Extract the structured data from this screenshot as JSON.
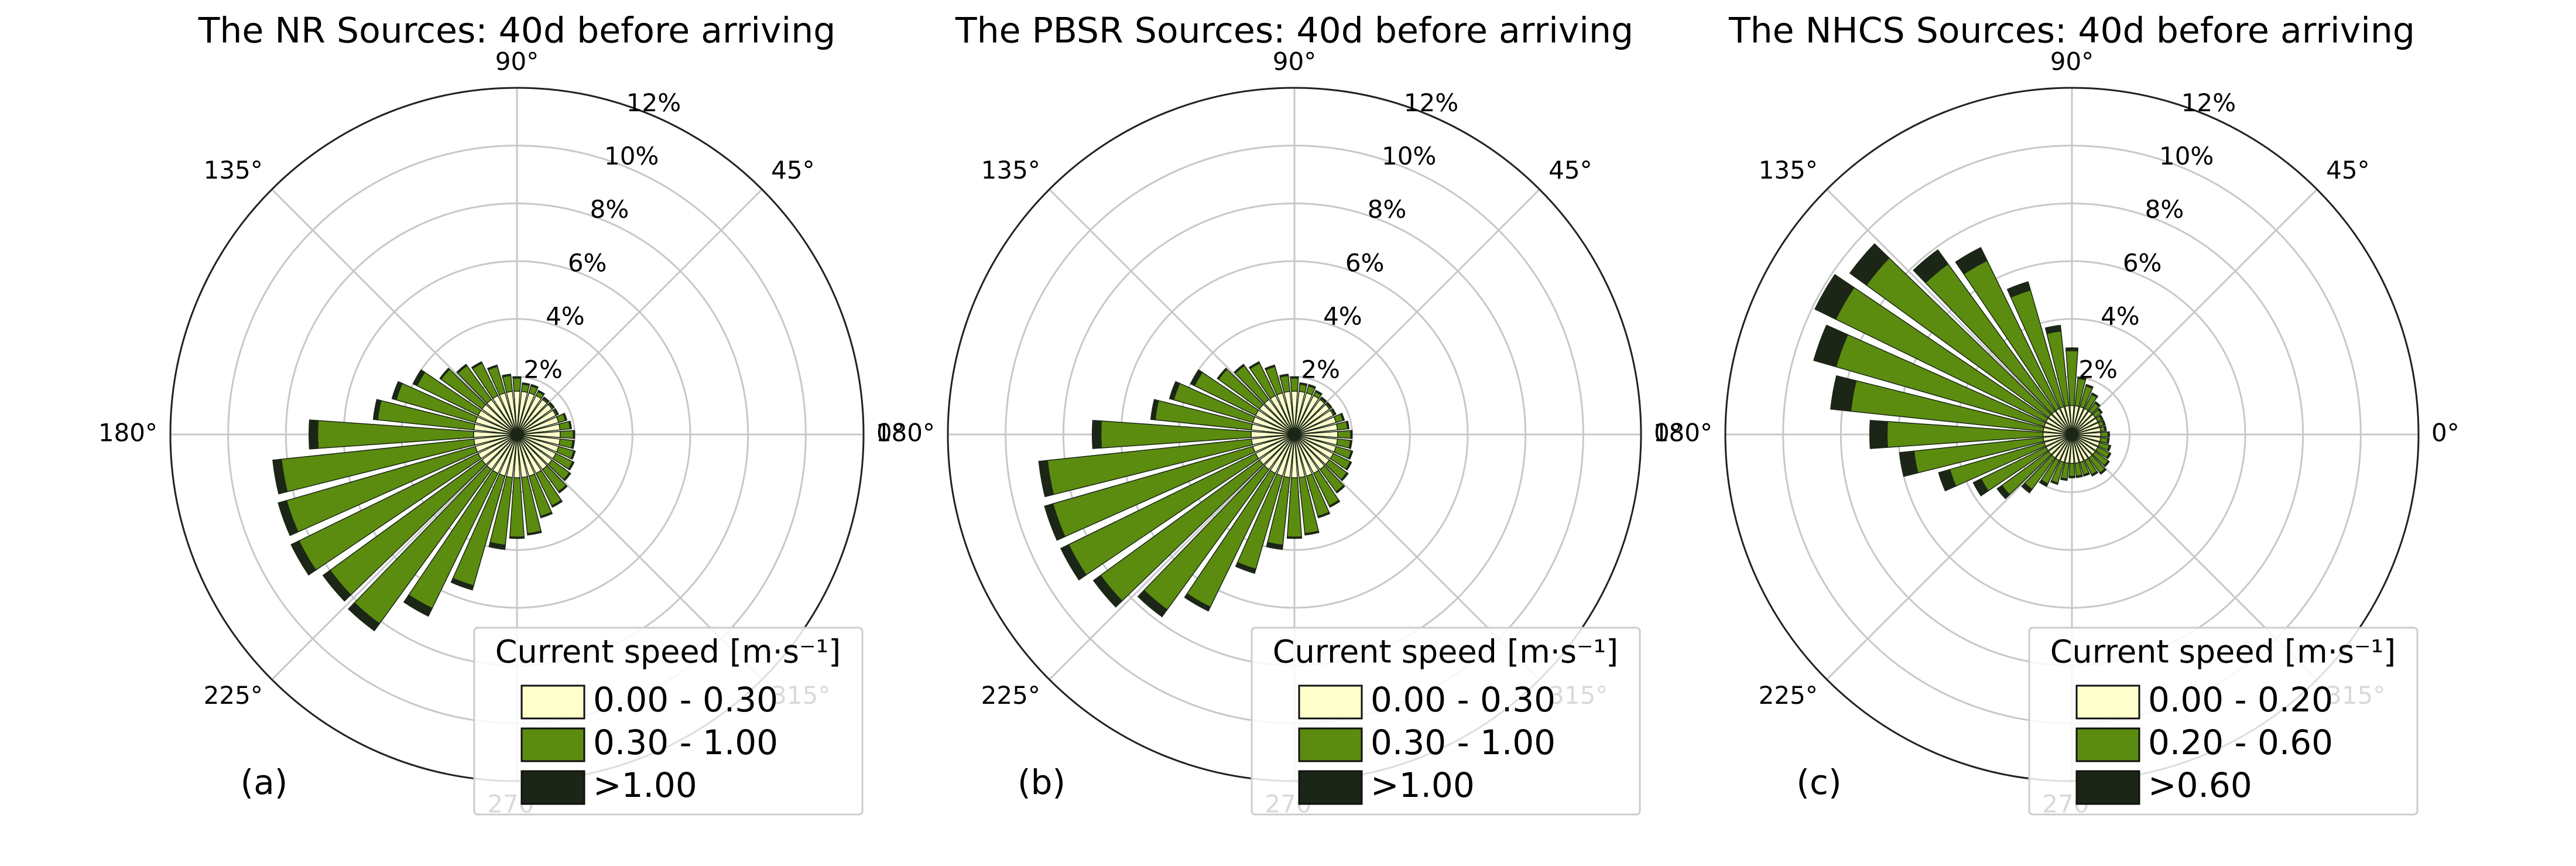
{
  "chart_data": [
    {
      "type": "rose",
      "title": "The NR Sources: 40d before arriving",
      "panel_label": "(a)",
      "legend_title": "Current speed [m·s⁻¹]",
      "legend": "lower right",
      "grid": true,
      "x": [
        0,
        10,
        20,
        30,
        40,
        50,
        60,
        70,
        80,
        90,
        100,
        110,
        120,
        130,
        140,
        150,
        160,
        170,
        180,
        190,
        200,
        210,
        220,
        230,
        240,
        250,
        260,
        270,
        280,
        290,
        300,
        310,
        320,
        330,
        340,
        350
      ],
      "xlim": [
        0,
        360
      ],
      "xticks": [
        {
          "value": 0,
          "label": "0°"
        },
        {
          "value": 45,
          "label": "45°"
        },
        {
          "value": 90,
          "label": "90°"
        },
        {
          "value": 135,
          "label": "135°"
        },
        {
          "value": 180,
          "label": "180°"
        },
        {
          "value": 225,
          "label": "225°"
        },
        {
          "value": 270,
          "label": "270°"
        },
        {
          "value": 315,
          "label": "315°"
        }
      ],
      "ylim": [
        0,
        12
      ],
      "yticks": [
        {
          "value": 2,
          "label": "2%"
        },
        {
          "value": 4,
          "label": "4%"
        },
        {
          "value": 6,
          "label": "6%"
        },
        {
          "value": 8,
          "label": "8%"
        },
        {
          "value": 10,
          "label": "10%"
        },
        {
          "value": 12,
          "label": "12%"
        }
      ],
      "series": [
        {
          "name": "0.00 - 0.30",
          "color": "#ffffcc",
          "values": [
            1.5,
            1.5,
            1.5,
            1.5,
            1.5,
            1.5,
            1.5,
            1.5,
            1.5,
            1.5,
            1.5,
            1.5,
            1.5,
            1.5,
            1.5,
            1.5,
            1.5,
            1.5,
            1.5,
            1.5,
            1.5,
            1.5,
            1.5,
            1.5,
            1.5,
            1.5,
            1.5,
            1.5,
            1.5,
            1.5,
            1.5,
            1.5,
            1.5,
            1.5,
            1.5,
            1.5
          ]
        },
        {
          "name": "0.30 - 1.00",
          "color": "#5b8c10",
          "values": [
            0.45,
            0.35,
            0.25,
            0.05,
            0.05,
            0.05,
            0.15,
            0.25,
            0.25,
            0.45,
            0.55,
            0.95,
            1.25,
            1.45,
            1.75,
            2.35,
            2.85,
            3.35,
            5.4,
            6.7,
            6.8,
            6.9,
            6.5,
            6.6,
            5.2,
            3.95,
            2.35,
            2.05,
            1.95,
            1.45,
            1.25,
            0.95,
            0.75,
            0.65,
            0.55,
            0.45
          ]
        },
        {
          "name": ">1.00",
          "color": "#1b2616",
          "values": [
            0.05,
            0.05,
            0.05,
            0.05,
            0.05,
            0.05,
            0.05,
            0.05,
            0.05,
            0.05,
            0.05,
            0.05,
            0.05,
            0.05,
            0.05,
            0.15,
            0.15,
            0.15,
            0.3,
            0.3,
            0.3,
            0.3,
            0.3,
            0.3,
            0.3,
            0.15,
            0.15,
            0.05,
            0.05,
            0.05,
            0.05,
            0.05,
            0.05,
            0.05,
            0.05,
            0.05
          ]
        }
      ]
    },
    {
      "type": "rose",
      "title": "The PBSR Sources: 40d before arriving",
      "panel_label": "(b)",
      "legend_title": "Current speed [m·s⁻¹]",
      "legend": "lower right",
      "grid": true,
      "x": [
        0,
        10,
        20,
        30,
        40,
        50,
        60,
        70,
        80,
        90,
        100,
        110,
        120,
        130,
        140,
        150,
        160,
        170,
        180,
        190,
        200,
        210,
        220,
        230,
        240,
        250,
        260,
        270,
        280,
        290,
        300,
        310,
        320,
        330,
        340,
        350
      ],
      "xlim": [
        0,
        360
      ],
      "xticks": [
        {
          "value": 0,
          "label": "0°"
        },
        {
          "value": 45,
          "label": "45°"
        },
        {
          "value": 90,
          "label": "90°"
        },
        {
          "value": 135,
          "label": "135°"
        },
        {
          "value": 180,
          "label": "180°"
        },
        {
          "value": 225,
          "label": "225°"
        },
        {
          "value": 270,
          "label": "270°"
        },
        {
          "value": 315,
          "label": "315°"
        }
      ],
      "ylim": [
        0,
        12
      ],
      "yticks": [
        {
          "value": 2,
          "label": "2%"
        },
        {
          "value": 4,
          "label": "4%"
        },
        {
          "value": 6,
          "label": "6%"
        },
        {
          "value": 8,
          "label": "8%"
        },
        {
          "value": 10,
          "label": "10%"
        },
        {
          "value": 12,
          "label": "12%"
        }
      ],
      "series": [
        {
          "name": "0.00 - 0.30",
          "color": "#ffffcc",
          "values": [
            1.5,
            1.5,
            1.5,
            1.5,
            1.5,
            1.5,
            1.5,
            1.5,
            1.5,
            1.5,
            1.5,
            1.5,
            1.5,
            1.5,
            1.5,
            1.5,
            1.5,
            1.5,
            1.5,
            1.5,
            1.5,
            1.5,
            1.5,
            1.5,
            1.5,
            1.5,
            1.5,
            1.5,
            1.5,
            1.5,
            1.5,
            1.5,
            1.5,
            1.5,
            1.5,
            1.5
          ]
        },
        {
          "name": "0.30 - 1.00",
          "color": "#5b8c10",
          "values": [
            0.45,
            0.35,
            0.25,
            0.05,
            0.05,
            0.05,
            0.15,
            0.25,
            0.25,
            0.45,
            0.55,
            0.95,
            1.25,
            1.45,
            1.75,
            2.35,
            2.85,
            3.35,
            5.2,
            7.1,
            7.2,
            7.2,
            6.8,
            6.0,
            5.15,
            3.35,
            2.35,
            2.05,
            1.95,
            1.45,
            1.25,
            0.95,
            0.75,
            0.65,
            0.55,
            0.45
          ]
        },
        {
          "name": ">1.00",
          "color": "#1b2616",
          "values": [
            0.05,
            0.05,
            0.05,
            0.05,
            0.05,
            0.05,
            0.05,
            0.05,
            0.05,
            0.05,
            0.05,
            0.05,
            0.05,
            0.05,
            0.05,
            0.15,
            0.15,
            0.15,
            0.3,
            0.3,
            0.3,
            0.3,
            0.3,
            0.3,
            0.15,
            0.15,
            0.15,
            0.05,
            0.05,
            0.05,
            0.05,
            0.05,
            0.05,
            0.05,
            0.05,
            0.05
          ]
        }
      ]
    },
    {
      "type": "rose",
      "title": "The NHCS Sources: 40d before arriving",
      "panel_label": "(c)",
      "legend_title": "Current speed [m·s⁻¹]",
      "legend": "lower right",
      "grid": true,
      "x": [
        0,
        10,
        20,
        30,
        40,
        50,
        60,
        70,
        80,
        90,
        100,
        110,
        120,
        130,
        140,
        150,
        160,
        170,
        180,
        190,
        200,
        210,
        220,
        230,
        240,
        250,
        260,
        270,
        280,
        290,
        300,
        310,
        320,
        330,
        340,
        350
      ],
      "xlim": [
        0,
        360
      ],
      "xticks": [
        {
          "value": 0,
          "label": "0°"
        },
        {
          "value": 45,
          "label": "45°"
        },
        {
          "value": 90,
          "label": "90°"
        },
        {
          "value": 135,
          "label": "135°"
        },
        {
          "value": 180,
          "label": "180°"
        },
        {
          "value": 225,
          "label": "225°"
        },
        {
          "value": 270,
          "label": "270°"
        },
        {
          "value": 315,
          "label": "315°"
        }
      ],
      "ylim": [
        0,
        12
      ],
      "yticks": [
        {
          "value": 2,
          "label": "2%"
        },
        {
          "value": 4,
          "label": "4%"
        },
        {
          "value": 6,
          "label": "6%"
        },
        {
          "value": 8,
          "label": "8%"
        },
        {
          "value": 10,
          "label": "10%"
        },
        {
          "value": 12,
          "label": "12%"
        }
      ],
      "series": [
        {
          "name": "0.00 - 0.20",
          "color": "#ffffcc",
          "values": [
            1,
            1,
            1,
            1,
            1,
            1,
            1,
            1,
            1,
            1,
            1,
            1,
            1,
            1,
            1,
            1,
            1,
            1,
            1,
            1,
            1,
            1,
            1,
            1,
            1,
            1,
            1,
            1,
            1,
            1,
            1,
            1,
            1,
            1,
            1,
            1
          ]
        },
        {
          "name": "0.20 - 0.60",
          "color": "#5b8c10",
          "values": [
            0.25,
            0.15,
            0.15,
            0.15,
            0.25,
            0.35,
            0.55,
            0.75,
            0.95,
            1.9,
            2.6,
            4.2,
            5.7,
            6.3,
            7.8,
            8.1,
            7.5,
            6.7,
            5.4,
            4.5,
            3.4,
            2.5,
            2.0,
            1.35,
            0.9,
            0.75,
            0.55,
            0.45,
            0.45,
            0.45,
            0.55,
            0.65,
            0.55,
            0.45,
            0.35,
            0.25
          ]
        },
        {
          "name": ">0.60",
          "color": "#1b2616",
          "values": [
            0.05,
            0.05,
            0.05,
            0.05,
            0.05,
            0.05,
            0.05,
            0.05,
            0.05,
            0.1,
            0.2,
            0.3,
            0.5,
            0.6,
            0.7,
            0.8,
            0.8,
            0.7,
            0.6,
            0.5,
            0.4,
            0.3,
            0.2,
            0.15,
            0.1,
            0.05,
            0.05,
            0.05,
            0.05,
            0.05,
            0.05,
            0.05,
            0.05,
            0.05,
            0.05,
            0.05
          ]
        }
      ]
    }
  ]
}
